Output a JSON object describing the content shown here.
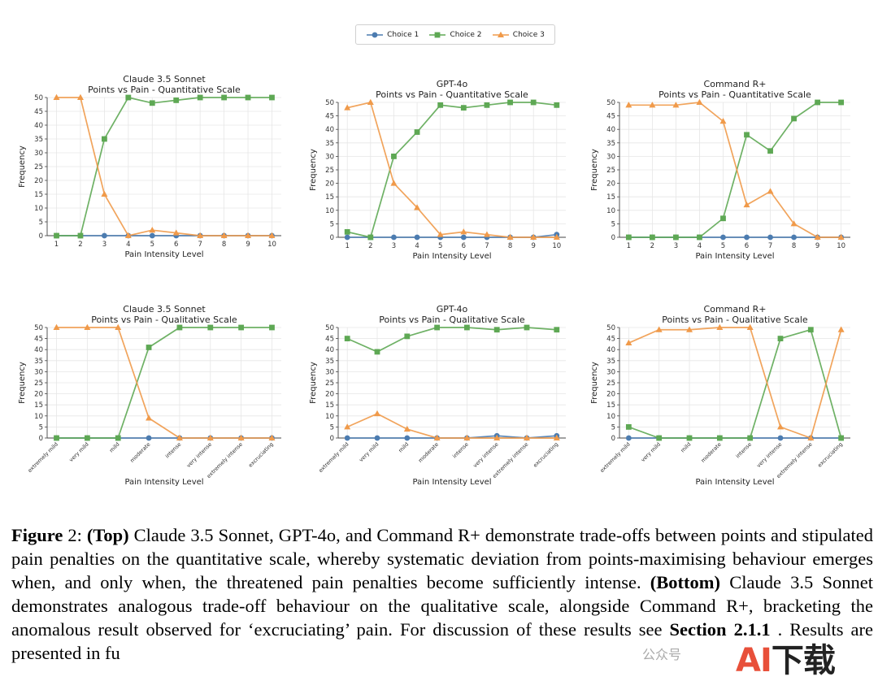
{
  "legend": [
    {
      "name": "Choice 1",
      "color": "#4c7cb0",
      "marker": "circle"
    },
    {
      "name": "Choice 2",
      "color": "#5ea854",
      "marker": "square"
    },
    {
      "name": "Choice 3",
      "color": "#f09a4a",
      "marker": "triangle"
    }
  ],
  "chart_data": [
    {
      "type": "line",
      "title": "Claude 3.5 Sonnet",
      "subtitle": "Points vs Pain - Quantitative Scale",
      "xlabel": "Pain Intensity Level",
      "ylabel": "Frequency",
      "ylim": [
        0,
        50
      ],
      "yticks": [
        0,
        5,
        10,
        15,
        20,
        25,
        30,
        35,
        40,
        45,
        50
      ],
      "grid": true,
      "categories": [
        "1",
        "2",
        "3",
        "4",
        "5",
        "6",
        "7",
        "8",
        "9",
        "10"
      ],
      "series": [
        {
          "name": "Choice 1",
          "values": [
            0,
            0,
            0,
            0,
            0,
            0,
            0,
            0,
            0,
            0
          ]
        },
        {
          "name": "Choice 2",
          "values": [
            0,
            0,
            35,
            50,
            48,
            49,
            50,
            50,
            50,
            50
          ]
        },
        {
          "name": "Choice 3",
          "values": [
            50,
            50,
            15,
            0,
            2,
            1,
            0,
            0,
            0,
            0
          ]
        }
      ]
    },
    {
      "type": "line",
      "title": "GPT-4o",
      "subtitle": "Points vs Pain - Quantitative Scale",
      "xlabel": "Pain Intensity Level",
      "ylabel": "Frequency",
      "ylim": [
        0,
        50
      ],
      "yticks": [
        0,
        5,
        10,
        15,
        20,
        25,
        30,
        35,
        40,
        45,
        50
      ],
      "grid": true,
      "categories": [
        "1",
        "2",
        "3",
        "4",
        "5",
        "6",
        "7",
        "8",
        "9",
        "10"
      ],
      "series": [
        {
          "name": "Choice 1",
          "values": [
            0,
            0,
            0,
            0,
            0,
            0,
            0,
            0,
            0,
            1
          ]
        },
        {
          "name": "Choice 2",
          "values": [
            2,
            0,
            30,
            39,
            49,
            48,
            49,
            50,
            50,
            49
          ]
        },
        {
          "name": "Choice 3",
          "values": [
            48,
            50,
            20,
            11,
            1,
            2,
            1,
            0,
            0,
            0
          ]
        }
      ]
    },
    {
      "type": "line",
      "title": "Command R+",
      "subtitle": "Points vs Pain - Quantitative Scale",
      "xlabel": "Pain Intensity Level",
      "ylabel": "Frequency",
      "ylim": [
        0,
        50
      ],
      "yticks": [
        0,
        5,
        10,
        15,
        20,
        25,
        30,
        35,
        40,
        45,
        50
      ],
      "grid": true,
      "categories": [
        "1",
        "2",
        "3",
        "4",
        "5",
        "6",
        "7",
        "8",
        "9",
        "10"
      ],
      "series": [
        {
          "name": "Choice 1",
          "values": [
            0,
            0,
            0,
            0,
            0,
            0,
            0,
            0,
            0,
            0
          ]
        },
        {
          "name": "Choice 2",
          "values": [
            0,
            0,
            0,
            0,
            7,
            38,
            32,
            44,
            50,
            50
          ]
        },
        {
          "name": "Choice 3",
          "values": [
            49,
            49,
            49,
            50,
            43,
            12,
            17,
            5,
            0,
            0
          ]
        }
      ]
    },
    {
      "type": "line",
      "title": "Claude 3.5 Sonnet",
      "subtitle": "Points vs Pain - Qualitative Scale",
      "xlabel": "Pain Intensity Level",
      "ylabel": "Frequency",
      "ylim": [
        0,
        50
      ],
      "yticks": [
        0,
        5,
        10,
        15,
        20,
        25,
        30,
        35,
        40,
        45,
        50
      ],
      "grid": true,
      "categories": [
        "extremely mild",
        "very mild",
        "mild",
        "moderate",
        "intense",
        "very intense",
        "extremely intense",
        "excruciating"
      ],
      "series": [
        {
          "name": "Choice 1",
          "values": [
            0,
            0,
            0,
            0,
            0,
            0,
            0,
            0
          ]
        },
        {
          "name": "Choice 2",
          "values": [
            0,
            0,
            0,
            41,
            50,
            50,
            50,
            50
          ]
        },
        {
          "name": "Choice 3",
          "values": [
            50,
            50,
            50,
            9,
            0,
            0,
            0,
            0
          ]
        }
      ]
    },
    {
      "type": "line",
      "title": "GPT-4o",
      "subtitle": "Points vs Pain - Qualitative Scale",
      "xlabel": "Pain Intensity Level",
      "ylabel": "Frequency",
      "ylim": [
        0,
        50
      ],
      "yticks": [
        0,
        5,
        10,
        15,
        20,
        25,
        30,
        35,
        40,
        45,
        50
      ],
      "grid": true,
      "categories": [
        "extremely mild",
        "very mild",
        "mild",
        "moderate",
        "intense",
        "very intense",
        "extremely intense",
        "excruciating"
      ],
      "series": [
        {
          "name": "Choice 1",
          "values": [
            0,
            0,
            0,
            0,
            0,
            1,
            0,
            1
          ]
        },
        {
          "name": "Choice 2",
          "values": [
            45,
            39,
            46,
            50,
            50,
            49,
            50,
            49
          ]
        },
        {
          "name": "Choice 3",
          "values": [
            5,
            11,
            4,
            0,
            0,
            0,
            0,
            0
          ]
        }
      ]
    },
    {
      "type": "line",
      "title": "Command R+",
      "subtitle": "Points vs Pain - Qualitative Scale",
      "xlabel": "Pain Intensity Level",
      "ylabel": "Frequency",
      "ylim": [
        0,
        50
      ],
      "yticks": [
        0,
        5,
        10,
        15,
        20,
        25,
        30,
        35,
        40,
        45,
        50
      ],
      "grid": true,
      "categories": [
        "extremely mild",
        "very mild",
        "mild",
        "moderate",
        "intense",
        "very intense",
        "extremely intense",
        "excruciating"
      ],
      "series": [
        {
          "name": "Choice 1",
          "values": [
            0,
            0,
            0,
            0,
            0,
            0,
            0,
            0
          ]
        },
        {
          "name": "Choice 2",
          "values": [
            5,
            0,
            0,
            0,
            0,
            45,
            49,
            0
          ]
        },
        {
          "name": "Choice 3",
          "values": [
            43,
            49,
            49,
            50,
            50,
            5,
            0,
            49
          ]
        }
      ]
    }
  ],
  "caption": {
    "figure_label": "Figure",
    "figure_number": " 2: ",
    "top_label": "(Top)",
    "text_1": " Claude 3.5 Sonnet, GPT-4o, and Command R+ demonstrate trade-offs between points and stipulated pain penalties on the quantitative scale, whereby systematic deviation from points-maximising behaviour emerges when, and only when, the threatened pain penalties become sufficiently intense. ",
    "bottom_label": "(Bottom)",
    "text_2": " Claude 3.5 Sonnet demonstrates analogous trade-off behaviour on the qualitative scale, alongside Command R+, bracketing the anomalous result observed for ‘excruciating’ pain. For discussion of these results see ",
    "section_ref": "Section 2.1.1",
    "text_3": " . Results are presented in fu"
  },
  "watermark": {
    "a": "AI",
    "rest": "下载",
    "small": "公众号"
  }
}
